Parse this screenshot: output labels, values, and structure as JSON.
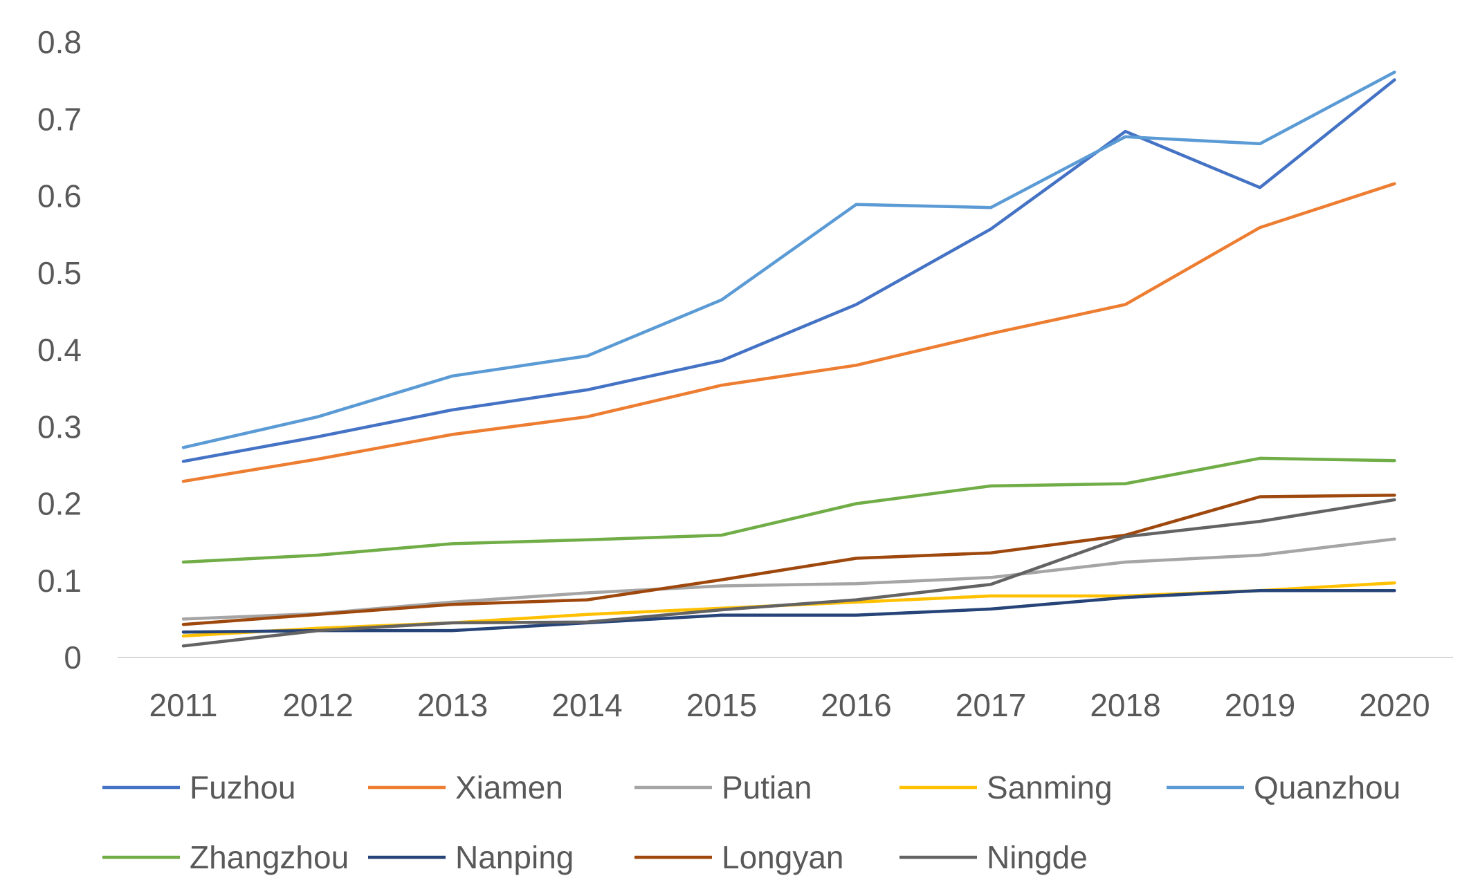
{
  "chart_data": {
    "type": "line",
    "title": "",
    "xlabel": "",
    "ylabel": "",
    "categories": [
      "2011",
      "2012",
      "2013",
      "2014",
      "2015",
      "2016",
      "2017",
      "2018",
      "2019",
      "2020"
    ],
    "ylim": [
      0,
      0.8
    ],
    "yticks": [
      {
        "value": 0,
        "label": "0"
      },
      {
        "value": 0.1,
        "label": "0.1"
      },
      {
        "value": 0.2,
        "label": "0.2"
      },
      {
        "value": 0.3,
        "label": "0.3"
      },
      {
        "value": 0.4,
        "label": "0.4"
      },
      {
        "value": 0.5,
        "label": "0.5"
      },
      {
        "value": 0.6,
        "label": "0.6"
      },
      {
        "value": 0.7,
        "label": "0.7"
      },
      {
        "value": 0.8,
        "label": "0.8"
      }
    ],
    "grid": false,
    "legend_position": "bottom",
    "series": [
      {
        "name": "Fuzhou",
        "color": "#4472C4",
        "values": [
          0.255,
          0.287,
          0.322,
          0.348,
          0.386,
          0.459,
          0.557,
          0.684,
          0.611,
          0.751
        ]
      },
      {
        "name": "Xiamen",
        "color": "#ED7D31",
        "values": [
          0.229,
          0.258,
          0.29,
          0.313,
          0.354,
          0.38,
          0.421,
          0.459,
          0.559,
          0.616
        ]
      },
      {
        "name": "Putian",
        "color": "#A5A5A5",
        "values": [
          0.05,
          0.057,
          0.072,
          0.084,
          0.093,
          0.096,
          0.104,
          0.124,
          0.133,
          0.154
        ]
      },
      {
        "name": "Sanming",
        "color": "#FFC000",
        "values": [
          0.028,
          0.038,
          0.045,
          0.056,
          0.064,
          0.072,
          0.08,
          0.08,
          0.087,
          0.097
        ]
      },
      {
        "name": "Quanzhou",
        "color": "#5B9BD5",
        "values": [
          0.273,
          0.313,
          0.366,
          0.392,
          0.465,
          0.589,
          0.585,
          0.677,
          0.668,
          0.761
        ]
      },
      {
        "name": "Zhangzhou",
        "color": "#70AD47",
        "values": [
          0.124,
          0.133,
          0.148,
          0.153,
          0.159,
          0.2,
          0.223,
          0.226,
          0.259,
          0.256
        ]
      },
      {
        "name": "Nanping",
        "color": "#264478",
        "values": [
          0.033,
          0.035,
          0.035,
          0.045,
          0.055,
          0.055,
          0.063,
          0.078,
          0.087,
          0.087
        ]
      },
      {
        "name": "Longyan",
        "color": "#9E480E",
        "values": [
          0.043,
          0.056,
          0.069,
          0.075,
          0.101,
          0.129,
          0.136,
          0.159,
          0.209,
          0.211
        ]
      },
      {
        "name": "Ningde",
        "color": "#636363",
        "values": [
          0.015,
          0.035,
          0.045,
          0.046,
          0.062,
          0.075,
          0.095,
          0.157,
          0.177,
          0.205
        ]
      }
    ]
  }
}
